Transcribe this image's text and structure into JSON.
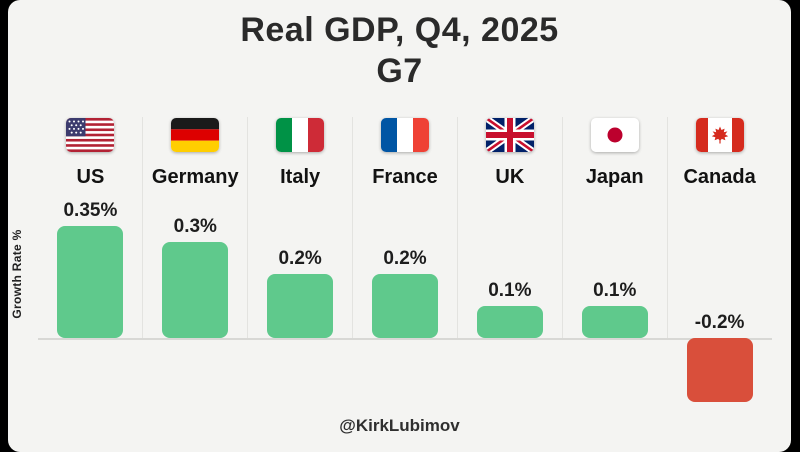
{
  "title": {
    "line1": "Real GDP, Q4, 2025",
    "line2": "G7"
  },
  "ylabel": "Growth Rate %",
  "attribution": "@KirkLubimov",
  "colors": {
    "background": "#f4f4f2",
    "bar_positive": "#5fc98c",
    "bar_negative": "#d94f3b",
    "text": "#2a2a2a"
  },
  "chart_data": {
    "type": "bar",
    "title": "Real GDP, Q4, 2025 G7",
    "xlabel": "",
    "ylabel": "Growth Rate %",
    "categories": [
      "US",
      "Germany",
      "Italy",
      "France",
      "UK",
      "Japan",
      "Canada"
    ],
    "values": [
      0.35,
      0.3,
      0.2,
      0.2,
      0.1,
      0.1,
      -0.2
    ],
    "labels": [
      "0.35%",
      "0.3%",
      "0.2%",
      "0.2%",
      "0.1%",
      "0.1%",
      "-0.2%"
    ],
    "ylim": [
      -0.25,
      0.4
    ],
    "grid": false,
    "legend": false,
    "bar_color_positive": "#5fc98c",
    "bar_color_negative": "#d94f3b",
    "flags": [
      "us-flag",
      "germany-flag",
      "italy-flag",
      "france-flag",
      "uk-flag",
      "japan-flag",
      "canada-flag"
    ]
  }
}
